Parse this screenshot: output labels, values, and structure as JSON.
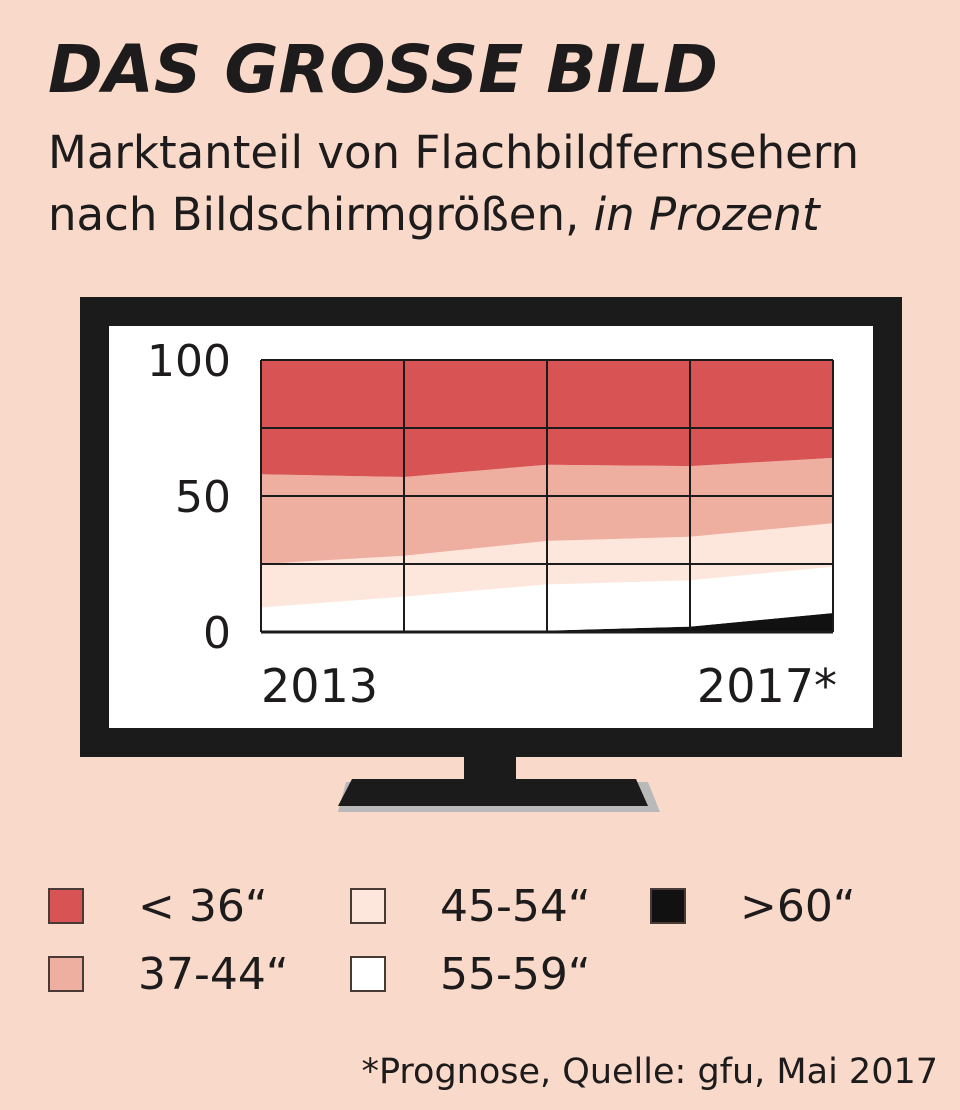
{
  "header": {
    "title": "DAS GROSSE BILD",
    "subtitle_line1": "Marktanteil von Flachbildfernsehern",
    "subtitle_line2": "nach Bildschirmgrößen, ",
    "unit": "in Prozent"
  },
  "chart_data": {
    "type": "area",
    "stacked": true,
    "x": [
      2013,
      2014,
      2015,
      2016,
      2017
    ],
    "x_tick_labels": [
      "2013",
      "2017*"
    ],
    "ylim": [
      0,
      100
    ],
    "y_ticks": [
      0,
      50,
      100
    ],
    "grid": true,
    "series": [
      {
        "name": ">60\"",
        "color": "#111111",
        "values": [
          0,
          0,
          0.5,
          2,
          7
        ]
      },
      {
        "name": "55-59\"",
        "color": "#ffffff",
        "values": [
          9,
          13,
          17,
          17,
          17
        ]
      },
      {
        "name": "45-54\"",
        "color": "#fde7dc",
        "values": [
          16,
          15,
          16,
          16,
          16
        ]
      },
      {
        "name": "37-44\"",
        "color": "#efafa0",
        "values": [
          33,
          29,
          28,
          26,
          24
        ]
      },
      {
        "name": "< 36\"",
        "color": "#d85454",
        "values": [
          42,
          43,
          38.5,
          39,
          36
        ]
      }
    ]
  },
  "legend": {
    "items": [
      {
        "label": "< 36“",
        "color": "#d85454"
      },
      {
        "label": "37-44“",
        "color": "#efafa0"
      },
      {
        "label": "45-54“",
        "color": "#fde7dc"
      },
      {
        "label": "55-59“",
        "color": "#ffffff"
      },
      {
        "label": ">60“",
        "color": "#111111"
      }
    ]
  },
  "footer": {
    "source": "*Prognose, Quelle: gfu, Mai 2017"
  }
}
